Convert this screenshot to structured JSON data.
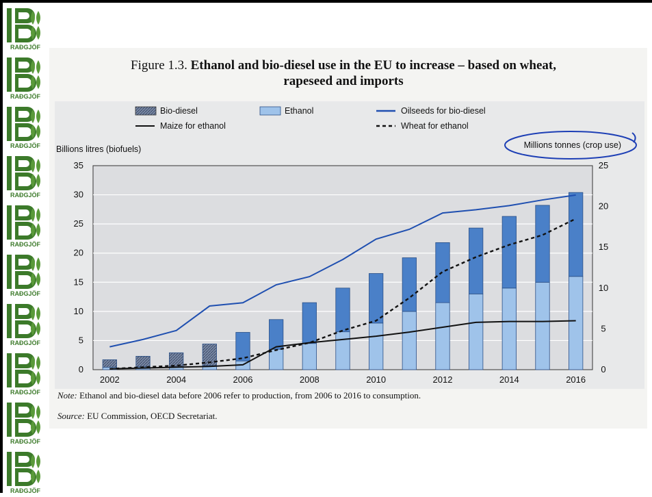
{
  "logo": {
    "text": "RAÐGJÖF",
    "count": 10,
    "icon": "wheat-bu-logo"
  },
  "figure": {
    "label": "Figure 1.3.",
    "title_line1": "Ethanol and bio-diesel use in the EU to increase – based on wheat,",
    "title_line2": "rapeseed and imports",
    "note_label": "Note:",
    "note_text": "Ethanol and bio-diesel data before 2006 refer to production, from 2006 to 2016 to consumption.",
    "source_label": "Source:",
    "source_text": "EU Commission, OECD Secretariat."
  },
  "chart_data": {
    "type": "bar",
    "title": "Ethanol and bio-diesel use in the EU to increase – based on wheat, rapeseed and imports",
    "ylabel": "Billions litres (biofuels)",
    "y2label": "Millions tonnes (crop use)",
    "ylim": [
      0,
      35
    ],
    "y2lim": [
      0,
      25
    ],
    "yticks": [
      "0",
      "5",
      "10",
      "15",
      "20",
      "25",
      "30",
      "35"
    ],
    "y2ticks": [
      "0",
      "5",
      "10",
      "15",
      "20",
      "25"
    ],
    "x": [
      2002,
      2003,
      2004,
      2005,
      2006,
      2007,
      2008,
      2009,
      2010,
      2011,
      2012,
      2013,
      2014,
      2015,
      2016
    ],
    "xticks": [
      "2002",
      "2004",
      "2006",
      "2008",
      "2010",
      "2012",
      "2014",
      "2016"
    ],
    "stacked_bars": [
      {
        "name": "Ethanol",
        "values": [
          0.4,
          0.5,
          0.5,
          0.7,
          1.5,
          3.5,
          4.5,
          6.5,
          8.0,
          10.0,
          11.5,
          13.0,
          14.0,
          15.0,
          16.0
        ],
        "color": "#9fc3ea"
      },
      {
        "name": "Bio-diesel",
        "values": [
          1.3,
          1.8,
          2.4,
          3.7,
          4.9,
          5.1,
          7.0,
          7.5,
          8.5,
          9.2,
          10.3,
          11.3,
          12.3,
          13.2,
          14.4
        ],
        "color": "#4a80c8"
      }
    ],
    "lines": [
      {
        "name": "Oilseeds for bio-diesel",
        "axis": "right",
        "style": "solid",
        "color": "#1f4fb0",
        "values": [
          2.8,
          3.7,
          4.8,
          7.8,
          8.2,
          10.4,
          11.4,
          13.5,
          16.0,
          17.2,
          19.2,
          19.6,
          20.1,
          20.8,
          21.4
        ]
      },
      {
        "name": "Maize for ethanol",
        "axis": "right",
        "style": "solid",
        "color": "#111111",
        "values": [
          0.1,
          0.2,
          0.3,
          0.4,
          0.6,
          2.8,
          3.3,
          3.7,
          4.1,
          4.6,
          5.2,
          5.8,
          5.9,
          5.9,
          6.0
        ]
      },
      {
        "name": "Wheat for ethanol",
        "axis": "right",
        "style": "dashed",
        "color": "#111111",
        "values": [
          0.1,
          0.3,
          0.5,
          0.9,
          1.4,
          2.4,
          3.3,
          4.8,
          6.0,
          8.8,
          12.0,
          13.8,
          15.3,
          16.5,
          18.5
        ]
      }
    ],
    "legend": [
      {
        "label": "Bio-diesel",
        "kind": "hatched-box"
      },
      {
        "label": "Ethanol",
        "kind": "light-box"
      },
      {
        "label": "Oilseeds for bio-diesel",
        "kind": "blue-line"
      },
      {
        "label": "Maize for ethanol",
        "kind": "black-line"
      },
      {
        "label": "Wheat for ethanol",
        "kind": "dashed-line"
      }
    ],
    "legend_position": "top",
    "grid": true,
    "annotation": "Millions tonnes (crop use) circled in blue ink"
  }
}
